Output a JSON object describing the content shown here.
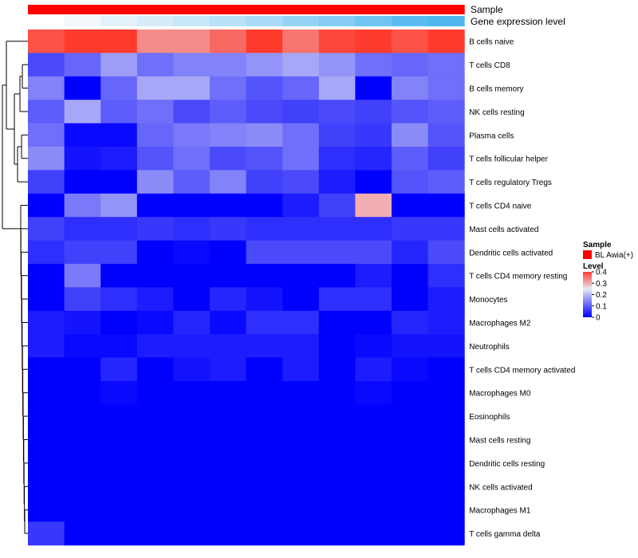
{
  "chart_data": {
    "type": "heatmap",
    "annotations": [
      {
        "name": "Sample",
        "colors": [
          "#ff0000",
          "#ff0000",
          "#ff0000",
          "#ff0000",
          "#ff0000",
          "#ff0000",
          "#ff0000",
          "#ff0000",
          "#ff0000",
          "#ff0000",
          "#ff0000",
          "#ff0000"
        ]
      },
      {
        "name": "Gene expression level",
        "colors": [
          "#ffffff",
          "#f2f8fc",
          "#e3f1fa",
          "#d6ecf9",
          "#c8e7f8",
          "#b9e1f7",
          "#a8daf6",
          "#95d2f5",
          "#84ccf4",
          "#70c4f2",
          "#5cbcf1",
          "#4fb6ef"
        ]
      }
    ],
    "rows": [
      "B cells naive",
      "T cells CD8",
      "B cells memory",
      "NK cells resting",
      "Plasma cells",
      "T cells follicular helper",
      "T cells regulatory  Tregs",
      "T cells CD4 naive",
      "Mast cells activated",
      "Dendritic cells activated",
      "T cells CD4 memory resting",
      "Monocytes",
      "Macrophages M2",
      "Neutrophils",
      "T cells CD4 memory activated",
      "Macrophages M0",
      "Eosinophils",
      "Mast cells resting",
      "Dendritic cells resting",
      "NK cells activated",
      "Macrophages M1",
      "T cells gamma delta"
    ],
    "values": [
      [
        0.38,
        0.42,
        0.42,
        0.33,
        0.33,
        0.36,
        0.42,
        0.35,
        0.39,
        0.42,
        0.38,
        0.42
      ],
      [
        0.08,
        0.11,
        0.17,
        0.12,
        0.14,
        0.14,
        0.16,
        0.18,
        0.16,
        0.12,
        0.11,
        0.12
      ],
      [
        0.14,
        0.0,
        0.11,
        0.18,
        0.18,
        0.12,
        0.09,
        0.11,
        0.18,
        0.0,
        0.14,
        0.12
      ],
      [
        0.1,
        0.18,
        0.1,
        0.12,
        0.08,
        0.1,
        0.08,
        0.07,
        0.08,
        0.07,
        0.09,
        0.1
      ],
      [
        0.12,
        0.01,
        0.01,
        0.11,
        0.13,
        0.14,
        0.15,
        0.12,
        0.07,
        0.06,
        0.15,
        0.09
      ],
      [
        0.15,
        0.02,
        0.03,
        0.09,
        0.12,
        0.08,
        0.09,
        0.12,
        0.05,
        0.04,
        0.1,
        0.07
      ],
      [
        0.07,
        0.0,
        0.0,
        0.15,
        0.1,
        0.14,
        0.07,
        0.08,
        0.03,
        0.0,
        0.09,
        0.1
      ],
      [
        0.0,
        0.13,
        0.16,
        0.0,
        0.0,
        0.0,
        0.0,
        0.03,
        0.07,
        0.3,
        0.0,
        0.0
      ],
      [
        0.07,
        0.05,
        0.05,
        0.06,
        0.05,
        0.06,
        0.05,
        0.05,
        0.05,
        0.05,
        0.06,
        0.06
      ],
      [
        0.05,
        0.07,
        0.07,
        0.0,
        0.01,
        0.0,
        0.08,
        0.08,
        0.08,
        0.08,
        0.04,
        0.08
      ],
      [
        0.0,
        0.13,
        0.0,
        0.0,
        0.0,
        0.0,
        0.0,
        0.0,
        0.0,
        0.03,
        0.0,
        0.05
      ],
      [
        0.0,
        0.07,
        0.05,
        0.03,
        0.0,
        0.04,
        0.02,
        0.0,
        0.05,
        0.05,
        0.0,
        0.03
      ],
      [
        0.03,
        0.02,
        0.0,
        0.01,
        0.04,
        0.01,
        0.05,
        0.05,
        0.0,
        0.0,
        0.04,
        0.03
      ],
      [
        0.03,
        0.01,
        0.01,
        0.03,
        0.03,
        0.03,
        0.03,
        0.03,
        0.0,
        0.01,
        0.02,
        0.02
      ],
      [
        0.0,
        0.0,
        0.04,
        0.0,
        0.02,
        0.03,
        0.0,
        0.03,
        0.0,
        0.03,
        0.01,
        0.0
      ],
      [
        0.0,
        0.0,
        0.01,
        0.0,
        0.0,
        0.0,
        0.0,
        0.0,
        0.0,
        0.01,
        0.0,
        0.0
      ],
      [
        0.0,
        0.0,
        0.0,
        0.0,
        0.0,
        0.0,
        0.0,
        0.0,
        0.0,
        0.0,
        0.0,
        0.0
      ],
      [
        0.0,
        0.0,
        0.0,
        0.0,
        0.0,
        0.0,
        0.0,
        0.0,
        0.0,
        0.0,
        0.0,
        0.0
      ],
      [
        0.0,
        0.0,
        0.0,
        0.0,
        0.0,
        0.0,
        0.0,
        0.0,
        0.0,
        0.0,
        0.0,
        0.0
      ],
      [
        0.0,
        0.0,
        0.0,
        0.0,
        0.0,
        0.0,
        0.0,
        0.0,
        0.0,
        0.0,
        0.0,
        0.0
      ],
      [
        0.0,
        0.0,
        0.0,
        0.0,
        0.0,
        0.0,
        0.0,
        0.0,
        0.0,
        0.0,
        0.0,
        0.0
      ],
      [
        0.06,
        0.0,
        0.0,
        0.0,
        0.0,
        0.0,
        0.0,
        0.0,
        0.0,
        0.0,
        0.0,
        0.0
      ]
    ],
    "color_scale": {
      "min": 0,
      "max": 0.4,
      "low": "#0000ff",
      "mid": "#e8e8f4",
      "high": "#ff3b2e",
      "mid_value": 0.25
    },
    "legend": {
      "sample_title": "Sample",
      "sample_entry": "BL Awia(+)",
      "sample_color": "#ff0000",
      "level_title": "Level",
      "ticks": [
        "0.4",
        "0.3",
        "0.2",
        "0.1",
        "0"
      ],
      "tick_values": [
        0.4,
        0.3,
        0.2,
        0.1,
        0
      ]
    },
    "dendrogram": "rows"
  }
}
